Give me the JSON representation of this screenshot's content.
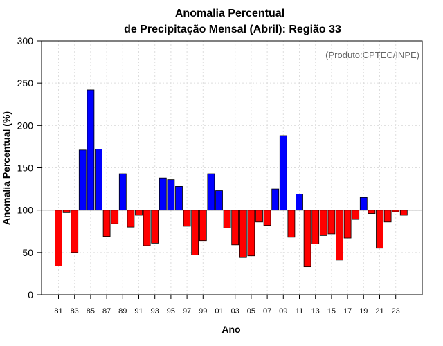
{
  "chart_data": {
    "type": "bar",
    "title_line1": "Anomalia Percentual",
    "title_line2": "de Precipitação Mensal (Abril): Região 33",
    "xlabel": "Ano",
    "ylabel": "Anomalia Percentual (%)",
    "credit": "(Produto:CPTEC/INPE)",
    "ylim": [
      0,
      300
    ],
    "yticks": [
      0,
      50,
      100,
      150,
      200,
      250,
      300
    ],
    "baseline": 100,
    "grid": true,
    "colors": {
      "above": "#0000ff",
      "below": "#ff0000"
    },
    "categories": [
      "81",
      "82",
      "83",
      "84",
      "85",
      "86",
      "87",
      "88",
      "89",
      "90",
      "91",
      "92",
      "93",
      "94",
      "95",
      "96",
      "97",
      "98",
      "99",
      "00",
      "01",
      "02",
      "03",
      "04",
      "05",
      "06",
      "07",
      "08",
      "09",
      "10",
      "11",
      "12",
      "13",
      "14",
      "15",
      "16",
      "17",
      "18",
      "19",
      "20",
      "21",
      "22",
      "23",
      "24"
    ],
    "xtick_labels": [
      "81",
      "83",
      "85",
      "87",
      "89",
      "91",
      "93",
      "95",
      "97",
      "99",
      "01",
      "03",
      "05",
      "07",
      "09",
      "11",
      "13",
      "15",
      "17",
      "19",
      "21",
      "23"
    ],
    "values": [
      34,
      97,
      50,
      171,
      242,
      172,
      69,
      84,
      143,
      80,
      94,
      58,
      61,
      138,
      136,
      128,
      81,
      47,
      64,
      143,
      123,
      79,
      59,
      44,
      46,
      86,
      82,
      125,
      188,
      68,
      119,
      33,
      60,
      70,
      72,
      41,
      67,
      89,
      115,
      96,
      55,
      86,
      98,
      94
    ]
  }
}
